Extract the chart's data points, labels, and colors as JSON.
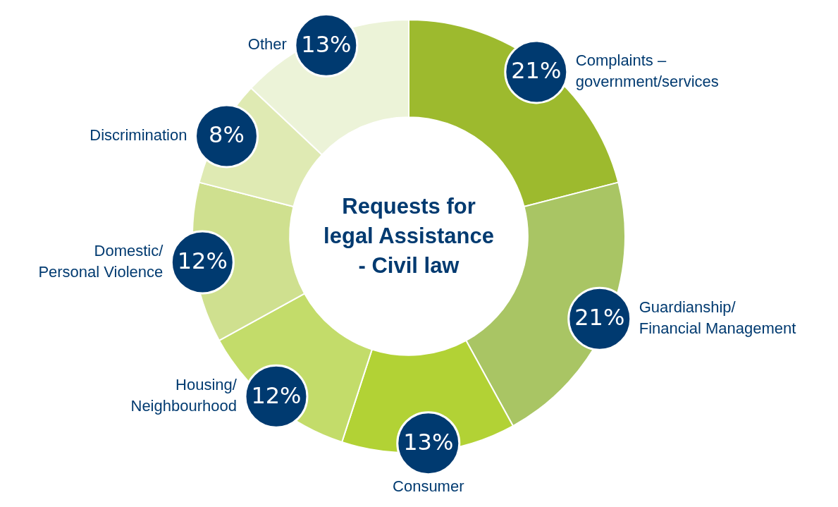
{
  "chart_data": {
    "type": "donut",
    "title": "Requests for legal Assistance - Civil law",
    "categories": [
      "Complaints –\ngovernment/services",
      "Guardianship/\nFinancial Management",
      "Consumer",
      "Housing/\nNeighbourhood",
      "Domestic/\nPersonal Violence",
      "Discrimination",
      "Other"
    ],
    "values": [
      21,
      21,
      13,
      12,
      12,
      8,
      13
    ],
    "value_labels": [
      "21%",
      "21%",
      "13%",
      "12%",
      "12%",
      "8%",
      "13%"
    ],
    "colors": [
      "#9dba2e",
      "#a9c564",
      "#b2d235",
      "#c3dc6a",
      "#cfe08f",
      "#dfeab3",
      "#ecf3d8"
    ],
    "legend": false
  }
}
